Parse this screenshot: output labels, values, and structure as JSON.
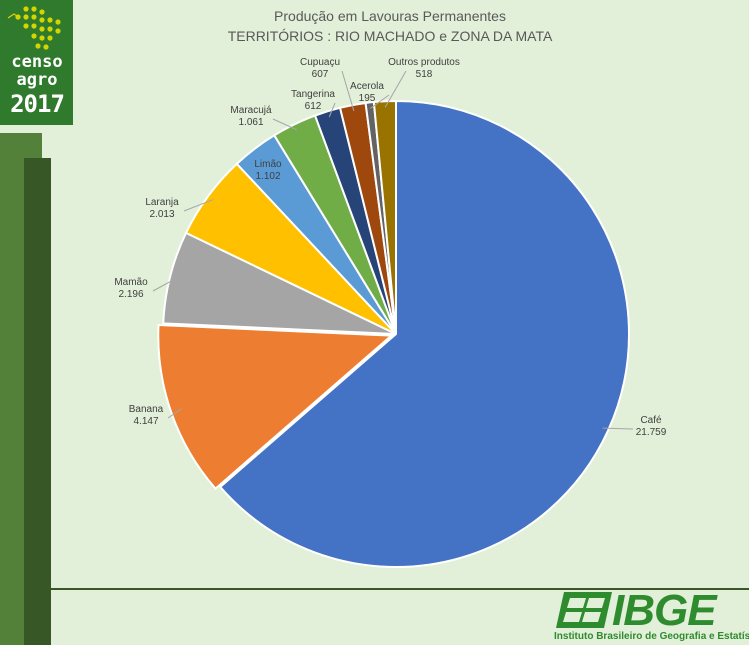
{
  "branding": {
    "censo_line1": "censo",
    "censo_line2": "agro",
    "censo_line3": "2017",
    "ibge_name": "IBGE",
    "ibge_full": "Instituto Brasileiro de Geografia e Estatística"
  },
  "colors": {
    "background": "#e2efd9",
    "logo_green": "#2f7a2c",
    "bar_light": "#53813a",
    "bar_dark": "#385726",
    "ibge_green": "#2e8b2e"
  },
  "chart_data": {
    "type": "pie",
    "title": "Produção em Lavouras Permanentes",
    "subtitle": "TERRITÓRIOS : RIO MACHADO e ZONA DA MATA",
    "start": "top, clockwise",
    "slices": [
      {
        "label": "Café",
        "value": 21759,
        "display": "21.759",
        "color": "#4472c4"
      },
      {
        "label": "Banana",
        "value": 4147,
        "display": "4.147",
        "color": "#ed7d31"
      },
      {
        "label": "Mamão",
        "value": 2196,
        "display": "2.196",
        "color": "#a5a5a5"
      },
      {
        "label": "Laranja",
        "value": 2013,
        "display": "2.013",
        "color": "#ffc000"
      },
      {
        "label": "Limão",
        "value": 1102,
        "display": "1.102",
        "color": "#5b9bd5"
      },
      {
        "label": "Maracujá",
        "value": 1061,
        "display": "1.061",
        "color": "#70ad47"
      },
      {
        "label": "Tangerina",
        "value": 612,
        "display": "612",
        "color": "#264478"
      },
      {
        "label": "Cupuaçu",
        "value": 607,
        "display": "607",
        "color": "#9e480e"
      },
      {
        "label": "Acerola",
        "value": 195,
        "display": "195",
        "color": "#636363"
      },
      {
        "label": "Outros produtos",
        "value": 518,
        "display": "518",
        "color": "#997300"
      }
    ]
  }
}
